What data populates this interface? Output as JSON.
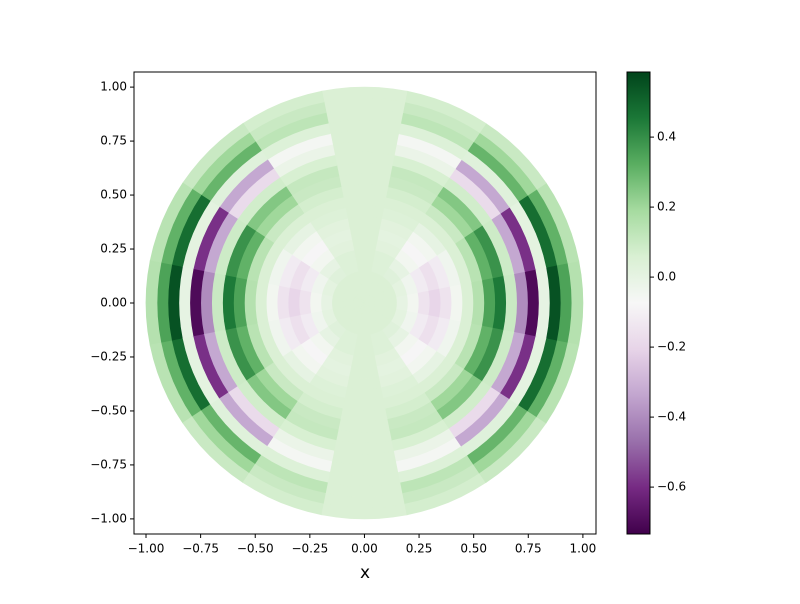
{
  "chart_data": {
    "type": "polar_heatmap",
    "xlabel": "x",
    "xlim": [
      -1.055,
      1.06
    ],
    "ylim": [
      -1.07,
      1.07
    ],
    "xticks": [
      {
        "value": -1,
        "label": "−1.00"
      },
      {
        "value": -0.75,
        "label": "−0.75"
      },
      {
        "value": -0.5,
        "label": "−0.50"
      },
      {
        "value": -0.25,
        "label": "−0.25"
      },
      {
        "value": 0,
        "label": "0.00"
      },
      {
        "value": 0.25,
        "label": "0.25"
      },
      {
        "value": 0.5,
        "label": "0.50"
      },
      {
        "value": 0.75,
        "label": "0.75"
      },
      {
        "value": 1,
        "label": "1.00"
      }
    ],
    "yticks": [
      {
        "value": -1,
        "label": "−1.00"
      },
      {
        "value": -0.75,
        "label": "−0.75"
      },
      {
        "value": -0.5,
        "label": "−0.50"
      },
      {
        "value": -0.25,
        "label": "−0.25"
      },
      {
        "value": 0,
        "label": "0.00"
      },
      {
        "value": 0.25,
        "label": "0.25"
      },
      {
        "value": 0.5,
        "label": "0.50"
      },
      {
        "value": 0.75,
        "label": "0.75"
      },
      {
        "value": 1,
        "label": "1.00"
      }
    ],
    "clim": [
      -0.734,
      0.586
    ],
    "cticks": [
      {
        "value": -0.6,
        "label": "−0.6"
      },
      {
        "value": -0.4,
        "label": "−0.4"
      },
      {
        "value": -0.2,
        "label": "−0.2"
      },
      {
        "value": 0,
        "label": "0.0"
      },
      0.2,
      0.4
    ],
    "colormap": [
      "#40004b",
      "#762a83",
      "#9970ab",
      "#c2a5cf",
      "#e7d4e8",
      "#f7f7f7",
      "#d9f0d3",
      "#a6dba0",
      "#5aae61",
      "#1b7837",
      "#00441b"
    ],
    "r_bins": [
      0,
      0.05,
      0.1,
      0.15,
      0.2,
      0.25,
      0.3,
      0.35,
      0.4,
      0.45,
      0.5,
      0.55,
      0.6,
      0.65,
      0.7,
      0.75,
      0.8,
      0.85,
      0.9,
      0.95,
      1
    ],
    "theta_bins": [
      -11.25,
      11.25,
      33.75,
      56.25,
      78.75,
      101.25,
      123.75,
      146.25,
      168.75,
      191.25,
      213.75,
      236.25,
      258.75,
      281.25,
      303.75,
      326.25,
      348.75
    ],
    "z": [
      [
        0.05,
        0.05,
        0.05,
        0,
        -0.05,
        -0.15,
        -0.2,
        -0.15,
        -0.05,
        0.05,
        0.15,
        0.35,
        0.45,
        0.1,
        -0.4,
        -0.7,
        0,
        0.55,
        0.35,
        0.15
      ],
      [
        0.05,
        0.05,
        0.05,
        0.01,
        -0.04,
        -0.12,
        -0.16,
        -0.12,
        -0.04,
        0.05,
        0.14,
        0.31,
        0.39,
        0.09,
        -0.33,
        -0.59,
        0.01,
        0.48,
        0.31,
        0.14
      ],
      [
        0.05,
        0.05,
        0.05,
        0.03,
        0,
        -0.05,
        -0.08,
        -0.05,
        0,
        0.05,
        0.1,
        0.2,
        0.25,
        0.08,
        -0.18,
        -0.33,
        0.03,
        0.3,
        0.2,
        0.1
      ],
      [
        0.05,
        0.05,
        0.05,
        0.04,
        0.04,
        0.02,
        0.01,
        0.02,
        0.04,
        0.05,
        0.07,
        0.1,
        0.11,
        0.06,
        -0.02,
        -0.06,
        0.04,
        0.13,
        0.1,
        0.07
      ],
      [
        0.05,
        0.05,
        0.05,
        0.05,
        0.05,
        0.05,
        0.05,
        0.05,
        0.05,
        0.05,
        0.05,
        0.05,
        0.05,
        0.05,
        0.05,
        0.05,
        0.05,
        0.05,
        0.05,
        0.05
      ],
      [
        0.05,
        0.05,
        0.05,
        0.04,
        0.04,
        0.02,
        0.01,
        0.02,
        0.04,
        0.05,
        0.07,
        0.1,
        0.11,
        0.06,
        -0.02,
        -0.06,
        0.04,
        0.13,
        0.1,
        0.07
      ],
      [
        0.05,
        0.05,
        0.05,
        0.03,
        0,
        -0.05,
        -0.08,
        -0.05,
        0,
        0.05,
        0.1,
        0.2,
        0.25,
        0.08,
        -0.18,
        -0.33,
        0.03,
        0.3,
        0.2,
        0.1
      ],
      [
        0.05,
        0.05,
        0.05,
        0.01,
        -0.04,
        -0.12,
        -0.16,
        -0.12,
        -0.04,
        0.05,
        0.14,
        0.31,
        0.39,
        0.09,
        -0.33,
        -0.59,
        0.01,
        0.48,
        0.31,
        0.14
      ],
      [
        0.05,
        0.05,
        0.05,
        0,
        -0.05,
        -0.15,
        -0.2,
        -0.15,
        -0.05,
        0.05,
        0.15,
        0.35,
        0.45,
        0.1,
        -0.4,
        -0.7,
        0,
        0.55,
        0.35,
        0.15
      ],
      [
        0.05,
        0.05,
        0.05,
        0.01,
        -0.04,
        -0.12,
        -0.16,
        -0.12,
        -0.04,
        0.05,
        0.14,
        0.31,
        0.39,
        0.09,
        -0.33,
        -0.59,
        0.01,
        0.48,
        0.31,
        0.14
      ],
      [
        0.05,
        0.05,
        0.05,
        0.03,
        0,
        -0.05,
        -0.08,
        -0.05,
        0,
        0.05,
        0.1,
        0.2,
        0.25,
        0.08,
        -0.18,
        -0.33,
        0.03,
        0.3,
        0.2,
        0.1
      ],
      [
        0.05,
        0.05,
        0.05,
        0.04,
        0.04,
        0.02,
        0.01,
        0.02,
        0.04,
        0.05,
        0.07,
        0.1,
        0.11,
        0.06,
        -0.02,
        -0.06,
        0.04,
        0.13,
        0.1,
        0.07
      ],
      [
        0.05,
        0.05,
        0.05,
        0.05,
        0.05,
        0.05,
        0.05,
        0.05,
        0.05,
        0.05,
        0.05,
        0.05,
        0.05,
        0.05,
        0.05,
        0.05,
        0.05,
        0.05,
        0.05,
        0.05
      ],
      [
        0.05,
        0.05,
        0.05,
        0.04,
        0.04,
        0.02,
        0.01,
        0.02,
        0.04,
        0.05,
        0.07,
        0.1,
        0.11,
        0.06,
        -0.02,
        -0.06,
        0.04,
        0.13,
        0.1,
        0.07
      ],
      [
        0.05,
        0.05,
        0.05,
        0.03,
        0,
        -0.05,
        -0.08,
        -0.05,
        0,
        0.05,
        0.1,
        0.2,
        0.25,
        0.08,
        -0.18,
        -0.33,
        0.03,
        0.3,
        0.2,
        0.1
      ],
      [
        0.05,
        0.05,
        0.05,
        0.01,
        -0.04,
        -0.12,
        -0.16,
        -0.12,
        -0.04,
        0.05,
        0.14,
        0.31,
        0.39,
        0.09,
        -0.33,
        -0.59,
        0.01,
        0.48,
        0.31,
        0.14
      ]
    ]
  }
}
